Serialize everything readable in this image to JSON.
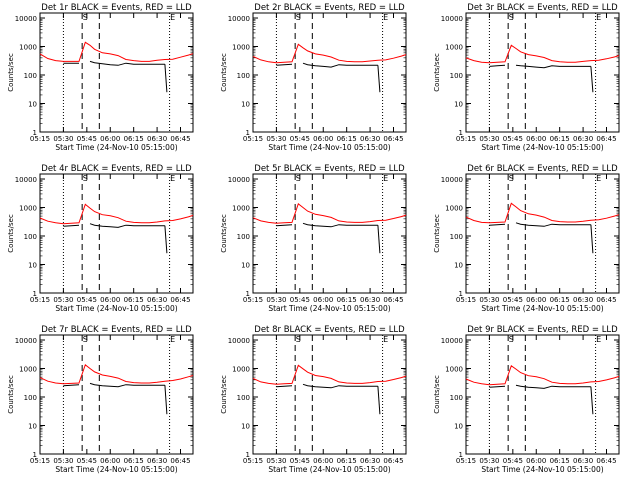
{
  "figure": {
    "x_tick_labels": [
      "05:15",
      "05:30",
      "05:45",
      "06:00",
      "06:15",
      "06:30",
      "06:45"
    ],
    "xlabel": "Start Time (24-Nov-10 05:15:00)",
    "ylabel": "Counts/sec",
    "y_tick_labels": [
      "1",
      "10",
      "100",
      "1000",
      "10000"
    ],
    "event_markers": [
      "S",
      "E"
    ],
    "colors": {
      "events": "#000000",
      "lld": "#ff0000",
      "axes": "#000000"
    }
  },
  "chart_data": [
    {
      "type": "line",
      "title": "Det 1r BLACK = Events, RED = LLD",
      "xlim": [
        "05:15",
        "06:53"
      ],
      "ylim": [
        1,
        15000
      ],
      "yscale": "log",
      "x": [
        "05:15",
        "05:20",
        "05:25",
        "05:30",
        "05:35",
        "05:40",
        "05:44",
        "05:47",
        "05:50",
        "05:55",
        "06:00",
        "06:05",
        "06:10",
        "06:15",
        "06:20",
        "06:25",
        "06:30",
        "06:35",
        "06:40",
        "06:45",
        "06:50",
        "06:53"
      ],
      "series": [
        {
          "name": "BLACK = Events",
          "values": [
            null,
            null,
            null,
            260,
            260,
            260,
            null,
            300,
            270,
            250,
            230,
            220,
            260,
            240,
            240,
            240,
            240,
            240,
            null,
            null,
            null,
            null
          ]
        },
        {
          "name": "RED = LLD",
          "values": [
            550,
            380,
            320,
            300,
            300,
            300,
            1400,
            1100,
            800,
            600,
            550,
            480,
            350,
            320,
            300,
            300,
            330,
            350,
            360,
            420,
            500,
            560
          ]
        }
      ]
    },
    {
      "type": "line",
      "title": "Det 2r BLACK = Events, RED = LLD",
      "xlim": [
        "05:15",
        "06:53"
      ],
      "ylim": [
        1,
        15000
      ],
      "yscale": "log",
      "x": [
        "05:15",
        "05:20",
        "05:25",
        "05:30",
        "05:35",
        "05:40",
        "05:44",
        "05:47",
        "05:50",
        "05:55",
        "06:00",
        "06:05",
        "06:10",
        "06:15",
        "06:20",
        "06:25",
        "06:30",
        "06:35",
        "06:40",
        "06:45",
        "06:50",
        "06:53"
      ],
      "series": [
        {
          "name": "BLACK = Events",
          "values": [
            null,
            null,
            null,
            220,
            230,
            240,
            null,
            260,
            230,
            210,
            200,
            190,
            230,
            220,
            220,
            220,
            220,
            220,
            null,
            null,
            null,
            null
          ]
        },
        {
          "name": "RED = LLD",
          "values": [
            450,
            340,
            290,
            270,
            280,
            290,
            1200,
            900,
            700,
            550,
            500,
            430,
            330,
            300,
            290,
            290,
            310,
            330,
            340,
            390,
            460,
            520
          ]
        }
      ]
    },
    {
      "type": "line",
      "title": "Det 3r BLACK = Events, RED = LLD",
      "xlim": [
        "05:15",
        "06:53"
      ],
      "ylim": [
        1,
        15000
      ],
      "yscale": "log",
      "x": [
        "05:15",
        "05:20",
        "05:25",
        "05:30",
        "05:35",
        "05:40",
        "05:44",
        "05:47",
        "05:50",
        "05:55",
        "06:00",
        "06:05",
        "06:10",
        "06:15",
        "06:20",
        "06:25",
        "06:30",
        "06:35",
        "06:40",
        "06:45",
        "06:50",
        "06:53"
      ],
      "series": [
        {
          "name": "BLACK = Events",
          "values": [
            null,
            null,
            null,
            200,
            210,
            220,
            null,
            220,
            210,
            200,
            190,
            180,
            210,
            200,
            200,
            200,
            200,
            200,
            null,
            null,
            null,
            null
          ]
        },
        {
          "name": "RED = LLD",
          "values": [
            400,
            320,
            280,
            270,
            280,
            290,
            1100,
            850,
            650,
            520,
            470,
            410,
            320,
            290,
            280,
            280,
            300,
            320,
            330,
            370,
            430,
            480
          ]
        }
      ]
    },
    {
      "type": "line",
      "title": "Det 4r BLACK = Events, RED = LLD",
      "xlim": [
        "05:15",
        "06:53"
      ],
      "ylim": [
        1,
        15000
      ],
      "yscale": "log",
      "x": [
        "05:15",
        "05:20",
        "05:25",
        "05:30",
        "05:35",
        "05:40",
        "05:44",
        "05:47",
        "05:50",
        "05:55",
        "06:00",
        "06:05",
        "06:10",
        "06:15",
        "06:20",
        "06:25",
        "06:30",
        "06:35",
        "06:40",
        "06:45",
        "06:50",
        "06:53"
      ],
      "series": [
        {
          "name": "BLACK = Events",
          "values": [
            null,
            null,
            null,
            220,
            230,
            240,
            null,
            270,
            240,
            220,
            210,
            200,
            240,
            230,
            230,
            230,
            230,
            230,
            null,
            null,
            null,
            null
          ]
        },
        {
          "name": "RED = LLD",
          "values": [
            430,
            330,
            290,
            270,
            280,
            290,
            1300,
            950,
            720,
            560,
            510,
            440,
            330,
            300,
            290,
            290,
            310,
            340,
            350,
            400,
            470,
            530
          ]
        }
      ]
    },
    {
      "type": "line",
      "title": "Det 5r BLACK = Events, RED = LLD",
      "xlim": [
        "05:15",
        "06:53"
      ],
      "ylim": [
        1,
        15000
      ],
      "yscale": "log",
      "x": [
        "05:15",
        "05:20",
        "05:25",
        "05:30",
        "05:35",
        "05:40",
        "05:44",
        "05:47",
        "05:50",
        "05:55",
        "06:00",
        "06:05",
        "06:10",
        "06:15",
        "06:20",
        "06:25",
        "06:30",
        "06:35",
        "06:40",
        "06:45",
        "06:50",
        "06:53"
      ],
      "series": [
        {
          "name": "BLACK = Events",
          "values": [
            null,
            null,
            null,
            230,
            240,
            250,
            null,
            280,
            250,
            230,
            220,
            210,
            250,
            240,
            240,
            240,
            240,
            240,
            null,
            null,
            null,
            null
          ]
        },
        {
          "name": "RED = LLD",
          "values": [
            440,
            340,
            300,
            280,
            290,
            300,
            1350,
            1000,
            750,
            580,
            520,
            450,
            340,
            310,
            300,
            300,
            320,
            350,
            360,
            410,
            480,
            540
          ]
        }
      ]
    },
    {
      "type": "line",
      "title": "Det 6r BLACK = Events, RED = LLD",
      "xlim": [
        "05:15",
        "06:53"
      ],
      "ylim": [
        1,
        15000
      ],
      "yscale": "log",
      "x": [
        "05:15",
        "05:20",
        "05:25",
        "05:30",
        "05:35",
        "05:40",
        "05:44",
        "05:47",
        "05:50",
        "05:55",
        "06:00",
        "06:05",
        "06:10",
        "06:15",
        "06:20",
        "06:25",
        "06:30",
        "06:35",
        "06:40",
        "06:45",
        "06:50",
        "06:53"
      ],
      "series": [
        {
          "name": "BLACK = Events",
          "values": [
            null,
            null,
            null,
            240,
            250,
            260,
            null,
            290,
            260,
            240,
            230,
            220,
            260,
            250,
            250,
            250,
            250,
            250,
            null,
            null,
            null,
            null
          ]
        },
        {
          "name": "RED = LLD",
          "values": [
            460,
            350,
            300,
            290,
            300,
            310,
            1400,
            1050,
            780,
            600,
            540,
            460,
            350,
            320,
            310,
            310,
            330,
            360,
            370,
            420,
            500,
            560
          ]
        }
      ]
    },
    {
      "type": "line",
      "title": "Det 7r BLACK = Events, RED = LLD",
      "xlim": [
        "05:15",
        "06:53"
      ],
      "ylim": [
        1,
        15000
      ],
      "yscale": "log",
      "x": [
        "05:15",
        "05:20",
        "05:25",
        "05:30",
        "05:35",
        "05:40",
        "05:44",
        "05:47",
        "05:50",
        "05:55",
        "06:00",
        "06:05",
        "06:10",
        "06:15",
        "06:20",
        "06:25",
        "06:30",
        "06:35",
        "06:40",
        "06:45",
        "06:50",
        "06:53"
      ],
      "series": [
        {
          "name": "BLACK = Events",
          "values": [
            null,
            null,
            null,
            250,
            260,
            270,
            null,
            300,
            270,
            250,
            240,
            230,
            270,
            260,
            260,
            260,
            260,
            260,
            null,
            null,
            null,
            null
          ]
        },
        {
          "name": "RED = LLD",
          "values": [
            480,
            360,
            310,
            290,
            300,
            310,
            1350,
            1000,
            760,
            590,
            530,
            460,
            350,
            320,
            310,
            310,
            330,
            360,
            380,
            430,
            510,
            570
          ]
        }
      ]
    },
    {
      "type": "line",
      "title": "Det 8r BLACK = Events, RED = LLD",
      "xlim": [
        "05:15",
        "06:53"
      ],
      "ylim": [
        1,
        15000
      ],
      "yscale": "log",
      "x": [
        "05:15",
        "05:20",
        "05:25",
        "05:30",
        "05:35",
        "05:40",
        "05:44",
        "05:47",
        "05:50",
        "05:55",
        "06:00",
        "06:05",
        "06:10",
        "06:15",
        "06:20",
        "06:25",
        "06:30",
        "06:35",
        "06:40",
        "06:45",
        "06:50",
        "06:53"
      ],
      "series": [
        {
          "name": "BLACK = Events",
          "values": [
            null,
            null,
            null,
            230,
            240,
            250,
            null,
            280,
            250,
            230,
            220,
            210,
            250,
            240,
            240,
            240,
            240,
            240,
            null,
            null,
            null,
            null
          ]
        },
        {
          "name": "RED = LLD",
          "values": [
            450,
            340,
            300,
            280,
            290,
            300,
            1300,
            980,
            740,
            570,
            520,
            450,
            340,
            310,
            300,
            300,
            320,
            350,
            360,
            410,
            480,
            540
          ]
        }
      ]
    },
    {
      "type": "line",
      "title": "Det 9r BLACK = Events, RED = LLD",
      "xlim": [
        "05:15",
        "06:53"
      ],
      "ylim": [
        1,
        15000
      ],
      "yscale": "log",
      "x": [
        "05:15",
        "05:20",
        "05:25",
        "05:30",
        "05:35",
        "05:40",
        "05:44",
        "05:47",
        "05:50",
        "05:55",
        "06:00",
        "06:05",
        "06:10",
        "06:15",
        "06:20",
        "06:25",
        "06:30",
        "06:35",
        "06:40",
        "06:45",
        "06:50",
        "06:53"
      ],
      "series": [
        {
          "name": "BLACK = Events",
          "values": [
            null,
            null,
            null,
            220,
            230,
            240,
            null,
            260,
            240,
            220,
            210,
            200,
            240,
            230,
            230,
            230,
            230,
            230,
            null,
            null,
            null,
            null
          ]
        },
        {
          "name": "RED = LLD",
          "values": [
            430,
            330,
            290,
            270,
            280,
            290,
            1250,
            950,
            720,
            560,
            510,
            440,
            330,
            300,
            290,
            290,
            310,
            340,
            350,
            400,
            470,
            530
          ]
        }
      ]
    }
  ]
}
